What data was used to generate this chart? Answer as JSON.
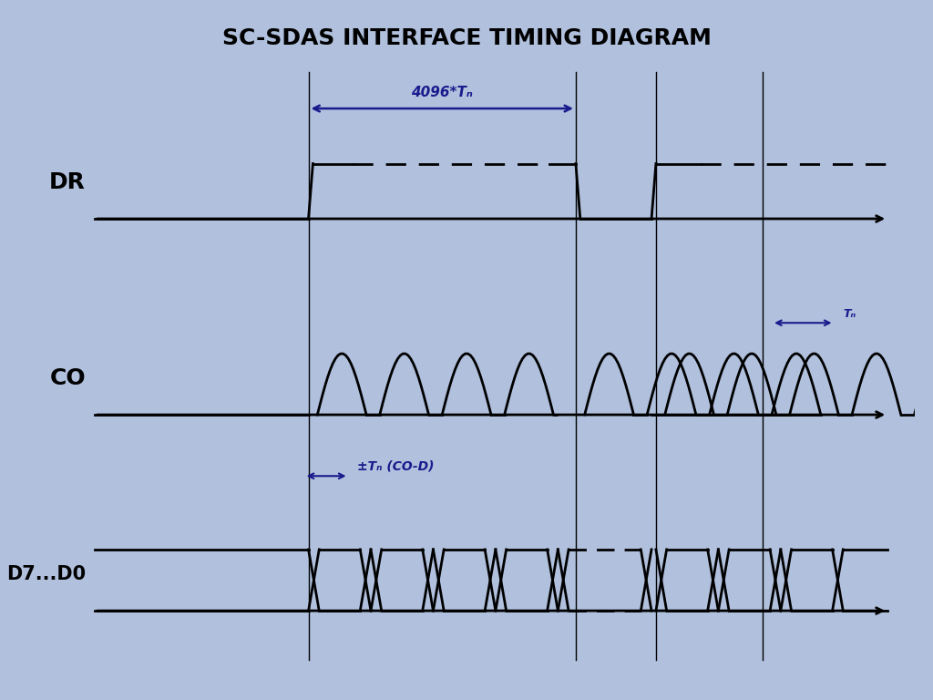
{
  "title": "SC-SDAS INTERFACE TIMING DIAGRAM",
  "title_color": "#000000",
  "title_fontsize": 18,
  "title_fontweight": "bold",
  "bg_color_outer": "#b0c0dd",
  "bg_color_inner": "#ffffff",
  "signal_color": "#000000",
  "annotation_color": "#1a1a8c",
  "figsize": [
    10.24,
    7.68
  ],
  "dpi": 100,
  "timing_label_4096": "4096*Tₙ",
  "timing_label_Tn": "Tₙ",
  "timing_label_CO_D": "±Tₙ (CO-D)"
}
